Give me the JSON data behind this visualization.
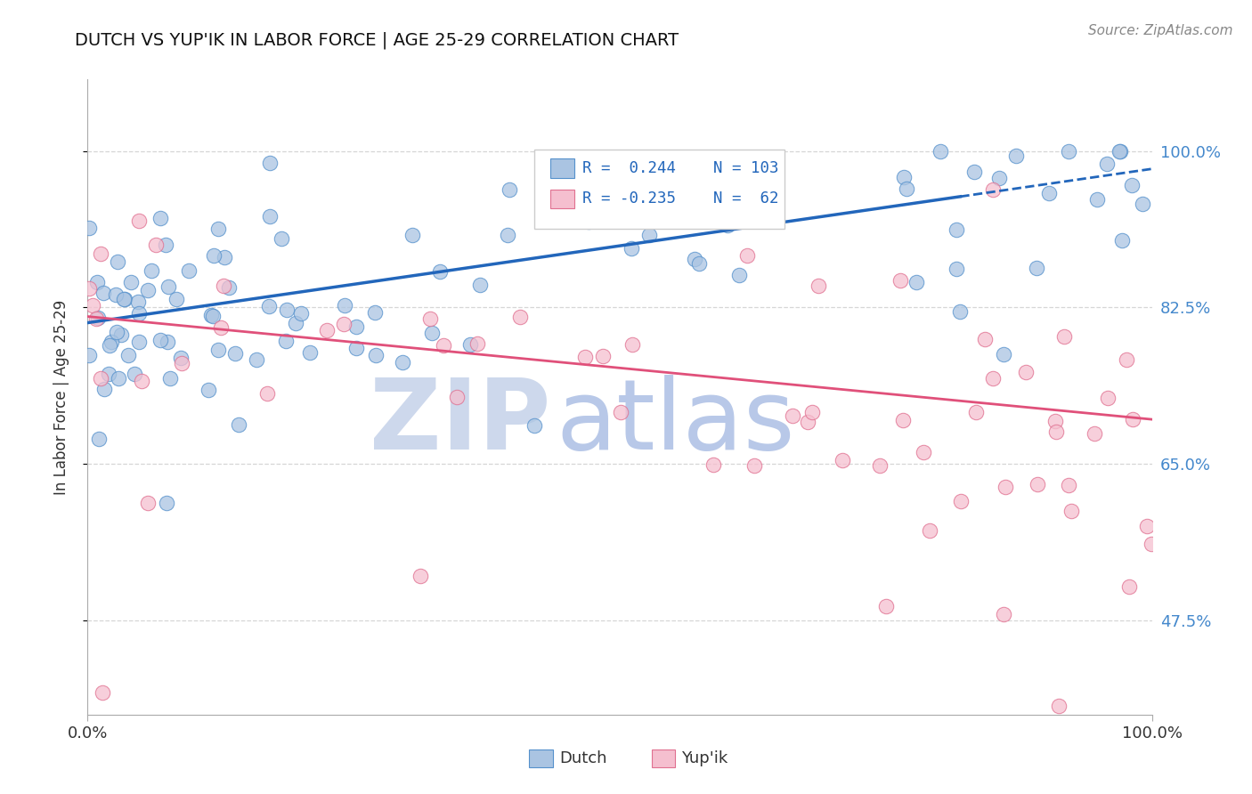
{
  "title": "DUTCH VS YUP'IK IN LABOR FORCE | AGE 25-29 CORRELATION CHART",
  "source": "Source: ZipAtlas.com",
  "ylabel": "In Labor Force | Age 25-29",
  "ytick_labels": [
    "47.5%",
    "65.0%",
    "82.5%",
    "100.0%"
  ],
  "ytick_values": [
    0.475,
    0.65,
    0.825,
    1.0
  ],
  "xmin": 0.0,
  "xmax": 1.0,
  "ymin": 0.37,
  "ymax": 1.08,
  "legend_dutch_r": "0.244",
  "legend_dutch_n": "103",
  "legend_yupik_r": "-0.235",
  "legend_yupik_n": "62",
  "dutch_color": "#aac4e2",
  "dutch_edge_color": "#5591cc",
  "dutch_line_color": "#2266bb",
  "yupik_color": "#f5bfcf",
  "yupik_edge_color": "#e07090",
  "yupik_line_color": "#e0507a",
  "background_color": "#ffffff",
  "dutch_line_x0": 0.0,
  "dutch_line_y0": 0.808,
  "dutch_line_x1": 1.0,
  "dutch_line_y1": 0.98,
  "yupik_line_x0": 0.0,
  "yupik_line_y0": 0.815,
  "yupik_line_x1": 1.0,
  "yupik_line_y1": 0.7
}
